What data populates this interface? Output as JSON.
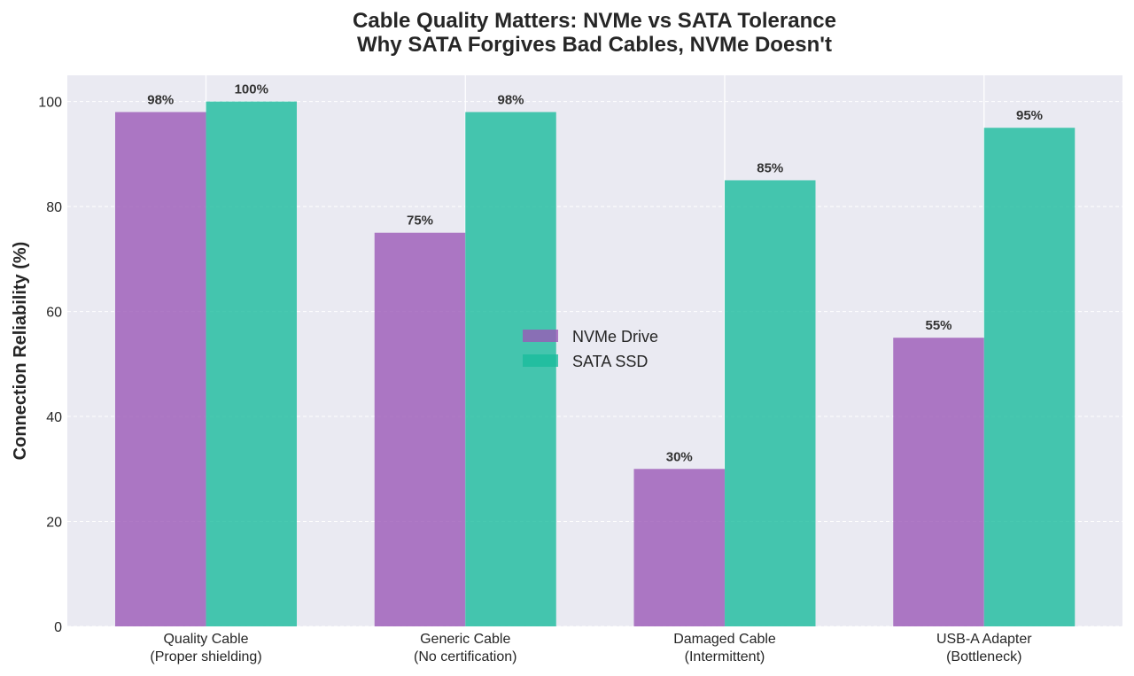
{
  "chart_data": {
    "type": "bar",
    "title": [
      "Cable Quality Matters: NVMe vs SATA Tolerance",
      "Why SATA Forgives Bad Cables, NVMe Doesn't"
    ],
    "xlabel": "",
    "ylabel": "Connection Reliability (%)",
    "ylim": [
      0,
      105
    ],
    "yticks": [
      0,
      20,
      40,
      60,
      80,
      100
    ],
    "grid": true,
    "legend_position": "center",
    "categories": [
      [
        "Quality Cable",
        "(Proper shielding)"
      ],
      [
        "Generic Cable",
        "(No certification)"
      ],
      [
        "Damaged Cable",
        "(Intermittent)"
      ],
      [
        "USB-A Adapter",
        "(Bottleneck)"
      ]
    ],
    "series": [
      {
        "name": "NVMe Drive",
        "color": "#9b59b6",
        "values": [
          98,
          75,
          30,
          55
        ],
        "labels": [
          "98%",
          "75%",
          "30%",
          "55%"
        ]
      },
      {
        "name": "SATA SSD",
        "color": "#1abc9c",
        "values": [
          100,
          98,
          85,
          95
        ],
        "labels": [
          "100%",
          "98%",
          "85%",
          "95%"
        ]
      }
    ]
  }
}
